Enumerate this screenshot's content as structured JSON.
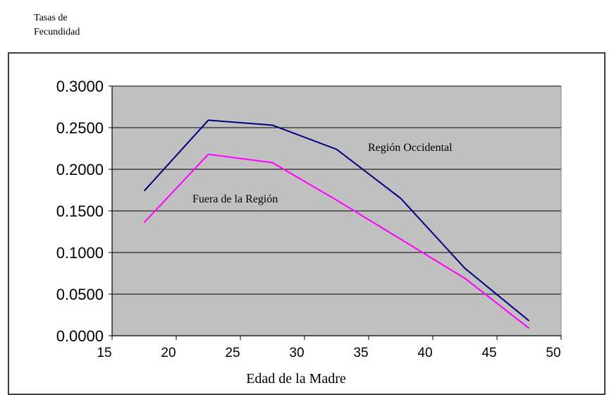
{
  "chart_data": {
    "type": "line",
    "ylabel_line1": "Tasas de",
    "ylabel_line2": "Fecundidad",
    "xlabel": "Edad de la Madre",
    "xlim": [
      15,
      50
    ],
    "ylim": [
      0,
      0.3
    ],
    "xticks": [
      15,
      20,
      25,
      30,
      35,
      40,
      45,
      50
    ],
    "xtick_labels": [
      "15",
      "20",
      "25",
      "30",
      "35",
      "40",
      "45",
      "50"
    ],
    "yticks": [
      0,
      0.05,
      0.1,
      0.15,
      0.2,
      0.25,
      0.3
    ],
    "ytick_labels": [
      "0.0000",
      "0.0500",
      "0.1000",
      "0.1500",
      "0.2000",
      "0.2500",
      "0.3000"
    ],
    "grid": true,
    "background": "#c0c0c0",
    "series": [
      {
        "name": "Región Occidental",
        "color": "#000080",
        "x": [
          17.5,
          22.5,
          27.5,
          32.5,
          37.5,
          42.5,
          47.5
        ],
        "y": [
          0.174,
          0.259,
          0.253,
          0.224,
          0.165,
          0.081,
          0.018
        ]
      },
      {
        "name": "Fuera de la Región",
        "color": "#ff00ff",
        "x": [
          17.5,
          22.5,
          27.5,
          32.5,
          37.5,
          42.5,
          47.5
        ],
        "y": [
          0.136,
          0.218,
          0.208,
          0.163,
          0.116,
          0.069,
          0.009
        ]
      }
    ]
  }
}
